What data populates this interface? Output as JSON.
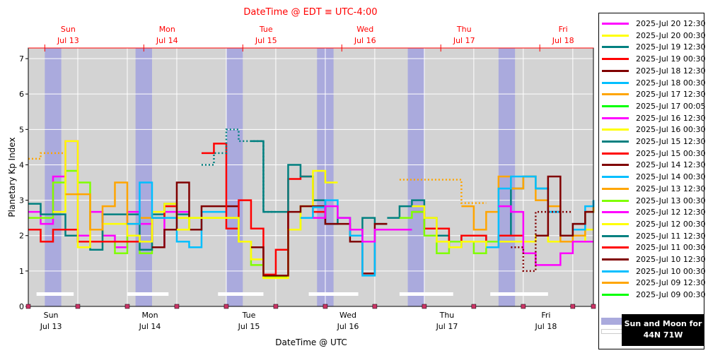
{
  "chart_data": {
    "type": "line",
    "title": "DateTime @ EDT ≡ UTC-4:00",
    "xlabel": "DateTime @ UTC",
    "ylabel": "Planetary Kp Index",
    "ylim": [
      0,
      7.3
    ],
    "y_ticks": [
      "0",
      "1",
      "2",
      "3",
      "4",
      "5",
      "6",
      "7"
    ],
    "xlim_hours_utc": [
      0,
      137
    ],
    "top_day_labels": [
      {
        "day": "Sun",
        "date": "Jul 13"
      },
      {
        "day": "Mon",
        "date": "Jul 14"
      },
      {
        "day": "Tue",
        "date": "Jul 15"
      },
      {
        "day": "Wed",
        "date": "Jul 16"
      },
      {
        "day": "Thu",
        "date": "Jul 17"
      },
      {
        "day": "Fri",
        "date": "Jul 18"
      }
    ],
    "bottom_day_labels": [
      {
        "day": "Sun",
        "date": "Jul 13"
      },
      {
        "day": "Mon",
        "date": "Jul 14"
      },
      {
        "day": "Tue",
        "date": "Jul 15"
      },
      {
        "day": "Wed",
        "date": "Jul 16"
      },
      {
        "day": "Thu",
        "date": "Jul 17"
      },
      {
        "day": "Fri",
        "date": "Jul 18"
      }
    ],
    "night_bands_hours": [
      [
        4,
        8
      ],
      [
        26,
        30
      ],
      [
        48,
        52
      ],
      [
        70,
        74
      ],
      [
        92,
        96
      ],
      [
        114,
        118
      ]
    ],
    "moon_bars_hours": [
      [
        2,
        11
      ],
      [
        24,
        34
      ],
      [
        46,
        57
      ],
      [
        68,
        80
      ],
      [
        90,
        103
      ],
      [
        112,
        126
      ]
    ],
    "grid": true,
    "legend_position": "right",
    "series": [
      {
        "name": "2025-Jul 20 12:30",
        "color": "#ff00ff"
      },
      {
        "name": "2025-Jul 20 00:30",
        "color": "#ffff00"
      },
      {
        "name": "2025-Jul 19 12:30",
        "color": "#008080"
      },
      {
        "name": "2025-Jul 19 00:30",
        "color": "#ff0000"
      },
      {
        "name": "2025-Jul 18 12:30",
        "color": "#800000"
      },
      {
        "name": "2025-Jul 18 00:30",
        "color": "#00bfff"
      },
      {
        "name": "2025-Jul 17 12:30",
        "color": "#ffa500"
      },
      {
        "name": "2025-Jul 17 00:05",
        "color": "#00ff00"
      },
      {
        "name": "2025-Jul 16 12:30",
        "color": "#ff00ff"
      },
      {
        "name": "2025-Jul 16 00:30",
        "color": "#ffff00"
      },
      {
        "name": "2025-Jul 15 12:30",
        "color": "#008080"
      },
      {
        "name": "2025-Jul 15 00:30",
        "color": "#ff0000"
      },
      {
        "name": "2025-Jul 14 12:30",
        "color": "#800000"
      },
      {
        "name": "2025-Jul 14 00:30",
        "color": "#00bfff"
      },
      {
        "name": "2025-Jul 13 12:30",
        "color": "#ffa500"
      },
      {
        "name": "2025-Jul 13 00:30",
        "color": "#80ff00"
      },
      {
        "name": "2025-Jul 12 12:30",
        "color": "#ff00ff"
      },
      {
        "name": "2025-Jul 12 00:30",
        "color": "#ffff00"
      },
      {
        "name": "2025-Jul 11 12:30",
        "color": "#008080"
      },
      {
        "name": "2025-Jul 11 00:30",
        "color": "#ff0000"
      },
      {
        "name": "2025-Jul 10 12:30",
        "color": "#800000"
      },
      {
        "name": "2025-Jul 10 00:30",
        "color": "#00bfff"
      },
      {
        "name": "2025-Jul 09 12:30",
        "color": "#ffa500"
      },
      {
        "name": "2025-Jul 09 00:30",
        "color": "#00ff00"
      }
    ],
    "plot_series": [
      {
        "color": "#ffa500",
        "dotted": true,
        "x": [
          0,
          3,
          6
        ],
        "y": [
          4.17,
          4.33,
          4.33
        ]
      },
      {
        "color": "#ff00ff",
        "x": [
          0,
          3,
          6,
          9,
          12,
          15,
          18,
          21,
          24,
          27,
          30,
          33,
          36
        ],
        "y": [
          2.67,
          2.33,
          3.67,
          4.67,
          2.0,
          2.67,
          2.0,
          1.67,
          2.67,
          2.33,
          1.67,
          2.67,
          2.67
        ]
      },
      {
        "color": "#80ff00",
        "x": [
          0,
          3,
          6,
          9,
          12,
          15,
          18,
          21,
          24,
          27,
          30,
          33,
          36
        ],
        "y": [
          2.5,
          2.5,
          3.5,
          3.83,
          3.5,
          2.17,
          1.83,
          1.5,
          2.0,
          1.5,
          2.5,
          2.83,
          2.5
        ]
      },
      {
        "color": "#008080",
        "x": [
          0,
          3,
          6,
          9,
          12,
          15,
          18,
          21,
          24,
          27,
          30,
          33,
          36
        ],
        "y": [
          2.9,
          2.6,
          2.6,
          2.0,
          1.83,
          1.6,
          2.6,
          2.6,
          2.6,
          1.6,
          2.6,
          2.9,
          2.6
        ]
      },
      {
        "color": "#ff0000",
        "x": [
          0,
          3,
          6,
          9,
          12,
          15,
          18,
          21,
          24,
          27,
          30,
          33
        ],
        "y": [
          2.17,
          1.83,
          2.17,
          2.17,
          1.83,
          1.83,
          1.83,
          1.83,
          1.83,
          1.83,
          2.5,
          2.83
        ]
      },
      {
        "color": "#ffff00",
        "x": [
          6,
          9,
          12,
          15,
          18,
          21,
          24,
          27,
          30,
          33,
          36
        ],
        "y": [
          2.67,
          4.67,
          1.67,
          2.17,
          2.33,
          2.33,
          2.0,
          1.83,
          2.67,
          2.9,
          2.5
        ]
      },
      {
        "color": "#ffa500",
        "x": [
          9,
          12,
          15,
          18,
          21,
          24,
          27
        ],
        "y": [
          3.17,
          3.17,
          2.17,
          2.83,
          3.5,
          2.33,
          2.5
        ]
      },
      {
        "color": "#00bfff",
        "x": [
          24,
          27,
          30,
          33,
          36,
          39,
          42,
          45
        ],
        "y": [
          2.33,
          3.5,
          2.5,
          2.5,
          1.83,
          1.67,
          2.67,
          2.67
        ]
      },
      {
        "color": "#800000",
        "x": [
          30,
          33,
          36,
          39,
          42,
          45,
          48
        ],
        "y": [
          1.67,
          2.17,
          3.5,
          2.17,
          2.83,
          2.83,
          2.83
        ],
        "dotted_segment": [
          30,
          33
        ]
      },
      {
        "color": "#ff0000",
        "x": [
          42,
          45,
          48,
          51,
          54,
          57,
          60,
          63,
          66,
          69
        ],
        "y": [
          4.33,
          4.6,
          2.2,
          3.0,
          2.2,
          0.9,
          1.6,
          3.6,
          3.67,
          2.67
        ]
      },
      {
        "color": "#008080",
        "dotted": true,
        "x": [
          42,
          45,
          48,
          51,
          54,
          57
        ],
        "y": [
          4.0,
          4.33,
          5.0,
          4.67,
          4.67,
          2.67
        ]
      },
      {
        "color": "#008080",
        "x": [
          54,
          57,
          60,
          63,
          66,
          69,
          72,
          75,
          78,
          81,
          84
        ],
        "y": [
          4.67,
          2.67,
          2.67,
          4.0,
          3.67,
          3.0,
          2.33,
          2.5,
          2.0,
          2.5,
          2.33
        ]
      },
      {
        "color": "#80ff00",
        "x": [
          36,
          39,
          42,
          45,
          48,
          51,
          54,
          57,
          60,
          63,
          66
        ],
        "y": [
          2.17,
          2.5,
          2.5,
          2.5,
          2.5,
          1.83,
          1.17,
          0.83,
          0.83,
          2.17,
          2.83
        ]
      },
      {
        "color": "#ffff00",
        "x": [
          36,
          39,
          42,
          45,
          48,
          51,
          54,
          57,
          60,
          63,
          66,
          69,
          72
        ],
        "y": [
          2.17,
          2.5,
          2.5,
          2.5,
          2.5,
          1.83,
          1.33,
          0.8,
          0.8,
          2.17,
          2.83,
          3.83,
          3.5
        ]
      },
      {
        "color": "#800000",
        "x": [
          54,
          57,
          60,
          63,
          66,
          69,
          72,
          75,
          78,
          81,
          84
        ],
        "y": [
          1.67,
          0.87,
          0.87,
          2.67,
          2.83,
          2.83,
          2.33,
          2.33,
          1.83,
          0.93,
          2.33
        ],
        "dotted_segment": [
          72,
          75
        ]
      },
      {
        "color": "#00bfff",
        "x": [
          66,
          69,
          72,
          75,
          78,
          81,
          84,
          87,
          90
        ],
        "y": [
          2.5,
          2.8,
          3.0,
          2.5,
          2.0,
          0.87,
          2.17,
          2.17,
          2.17
        ]
      },
      {
        "color": "#ff00ff",
        "x": [
          69,
          72,
          75,
          78,
          81,
          84,
          87,
          90
        ],
        "y": [
          2.5,
          2.83,
          2.5,
          2.17,
          1.83,
          2.17,
          2.17,
          2.17
        ]
      },
      {
        "color": "#ffa500",
        "dotted": true,
        "x": [
          90,
          93,
          96,
          99,
          102,
          105,
          108
        ],
        "y": [
          3.58,
          3.58,
          3.58,
          3.58,
          3.58,
          2.92,
          2.92
        ]
      },
      {
        "color": "#008080",
        "x": [
          87,
          90,
          93,
          96,
          99,
          102,
          105,
          108,
          111,
          114,
          117,
          120,
          123,
          126,
          129,
          132,
          135,
          137
        ],
        "y": [
          2.5,
          2.83,
          3.0,
          2.5,
          2.0,
          1.67,
          2.0,
          2.0,
          1.67,
          2.0,
          3.33,
          3.67,
          3.33,
          2.67,
          2.0,
          2.33,
          2.67,
          3.0
        ]
      },
      {
        "color": "#ff0000",
        "x": [
          93,
          96,
          99,
          102,
          105,
          108,
          111,
          114,
          117
        ],
        "y": [
          2.67,
          2.2,
          2.2,
          1.83,
          2.0,
          2.0,
          1.83,
          2.0,
          2.0
        ]
      },
      {
        "color": "#80ff00",
        "x": [
          90,
          93,
          96,
          99,
          102,
          105,
          108,
          111
        ],
        "y": [
          2.5,
          2.67,
          2.0,
          1.5,
          1.83,
          1.83,
          1.5,
          1.83
        ]
      },
      {
        "color": "#ffff00",
        "x": [
          93,
          96,
          99,
          102,
          105,
          108,
          111,
          114,
          117,
          120,
          123,
          126,
          129,
          132,
          135,
          137
        ],
        "y": [
          2.83,
          2.5,
          1.83,
          1.67,
          1.83,
          1.83,
          1.67,
          1.83,
          1.83,
          1.83,
          2.0,
          1.83,
          2.0,
          1.83,
          2.17,
          2.17
        ]
      },
      {
        "color": "#ffa500",
        "x": [
          105,
          108,
          111,
          114,
          117,
          120,
          123,
          126,
          129,
          132,
          135,
          137
        ],
        "y": [
          2.83,
          2.17,
          2.67,
          3.67,
          3.33,
          3.67,
          3.0,
          2.83,
          1.83,
          2.0,
          2.67,
          2.83
        ]
      },
      {
        "color": "#00bfff",
        "x": [
          111,
          114,
          117,
          120,
          123,
          126,
          129,
          132,
          135,
          137
        ],
        "y": [
          1.67,
          3.33,
          3.67,
          3.67,
          3.33,
          2.67,
          2.0,
          2.17,
          2.83,
          3.0
        ]
      },
      {
        "color": "#ff00ff",
        "x": [
          114,
          117,
          120,
          123,
          126,
          129,
          132,
          135,
          137
        ],
        "y": [
          2.83,
          2.67,
          1.5,
          1.17,
          1.17,
          1.5,
          1.83,
          1.83,
          1.83
        ]
      },
      {
        "color": "#800000",
        "dotted": true,
        "x": [
          117,
          120,
          123,
          126,
          129
        ],
        "y": [
          1.67,
          1.0,
          2.67,
          2.67,
          2.67
        ]
      },
      {
        "color": "#800000",
        "x": [
          123,
          126,
          129,
          132,
          135,
          137
        ],
        "y": [
          2.0,
          3.67,
          2.0,
          2.33,
          2.67,
          2.67
        ]
      }
    ]
  },
  "legend": {
    "sun_moon_label_line1": "Sun and Moon for",
    "sun_moon_label_line2": "44N 71W"
  }
}
